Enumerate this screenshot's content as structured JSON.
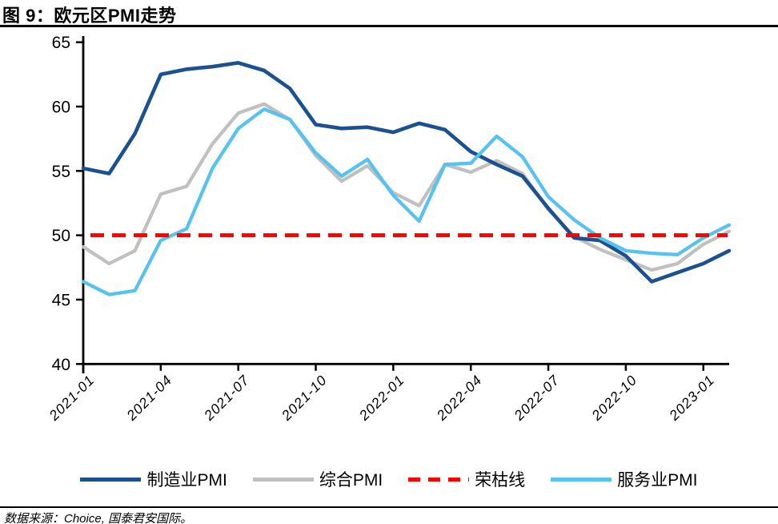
{
  "figure": {
    "title": "图 9：欧元区PMI走势",
    "source_note": "数据来源：Choice, 国泰君安国际。"
  },
  "chart_data": {
    "type": "line",
    "title": "欧元区PMI走势",
    "x": [
      "2021-01",
      "2021-02",
      "2021-03",
      "2021-04",
      "2021-05",
      "2021-06",
      "2021-07",
      "2021-08",
      "2021-09",
      "2021-10",
      "2021-11",
      "2021-12",
      "2022-01",
      "2022-02",
      "2022-03",
      "2022-04",
      "2022-05",
      "2022-06",
      "2022-07",
      "2022-08",
      "2022-09",
      "2022-10",
      "2022-11",
      "2022-12",
      "2023-01",
      "2023-02"
    ],
    "x_tick_labels": [
      "2021-01",
      "2021-04",
      "2021-07",
      "2021-10",
      "2022-01",
      "2022-04",
      "2022-07",
      "2022-10",
      "2023-01"
    ],
    "y_ticks": [
      40,
      45,
      50,
      55,
      60,
      65
    ],
    "ylim": [
      40,
      65
    ],
    "grid": false,
    "legend_position": "bottom",
    "series": [
      {
        "id": "manufacturing-pmi",
        "name": "制造业PMI",
        "color": "#1B5191",
        "values": [
          55.2,
          54.8,
          57.9,
          62.5,
          62.9,
          63.1,
          63.4,
          62.8,
          61.4,
          58.6,
          58.3,
          58.4,
          58.0,
          58.7,
          58.2,
          56.5,
          55.5,
          54.6,
          52.1,
          49.8,
          49.6,
          48.4,
          46.4,
          47.1,
          47.8,
          48.8
        ]
      },
      {
        "id": "composite-pmi",
        "name": "综合PMI",
        "color": "#C0C0C0",
        "values": [
          49.1,
          47.8,
          48.8,
          53.2,
          53.8,
          57.1,
          59.5,
          60.2,
          59.0,
          56.2,
          54.2,
          55.4,
          53.3,
          52.3,
          55.5,
          54.9,
          55.8,
          54.8,
          52.0,
          49.9,
          48.9,
          48.1,
          47.3,
          47.8,
          49.3,
          50.3
        ]
      },
      {
        "id": "services-pmi",
        "name": "服务业PMI",
        "color": "#56C2F0",
        "values": [
          46.4,
          45.4,
          45.7,
          49.6,
          50.5,
          55.2,
          58.3,
          59.8,
          59.0,
          56.4,
          54.6,
          55.9,
          53.1,
          51.1,
          55.5,
          55.6,
          57.7,
          56.1,
          53.0,
          51.2,
          49.8,
          48.8,
          48.6,
          48.5,
          49.8,
          50.8
        ]
      }
    ],
    "reference_line": {
      "id": "boom-bust-line",
      "name": "荣枯线",
      "value": 50,
      "color": "#FF0000",
      "style": "dashed"
    },
    "legend": [
      {
        "id": "manufacturing-pmi",
        "label": "制造业PMI",
        "color": "#1B5191",
        "dashed": false
      },
      {
        "id": "composite-pmi",
        "label": "综合PMI",
        "color": "#C0C0C0",
        "dashed": false
      },
      {
        "id": "boom-bust-line",
        "label": "荣枯线",
        "color": "#FF0000",
        "dashed": true
      },
      {
        "id": "services-pmi",
        "label": "服务业PMI",
        "color": "#56C2F0",
        "dashed": false
      }
    ],
    "axis_color": "#000000"
  }
}
